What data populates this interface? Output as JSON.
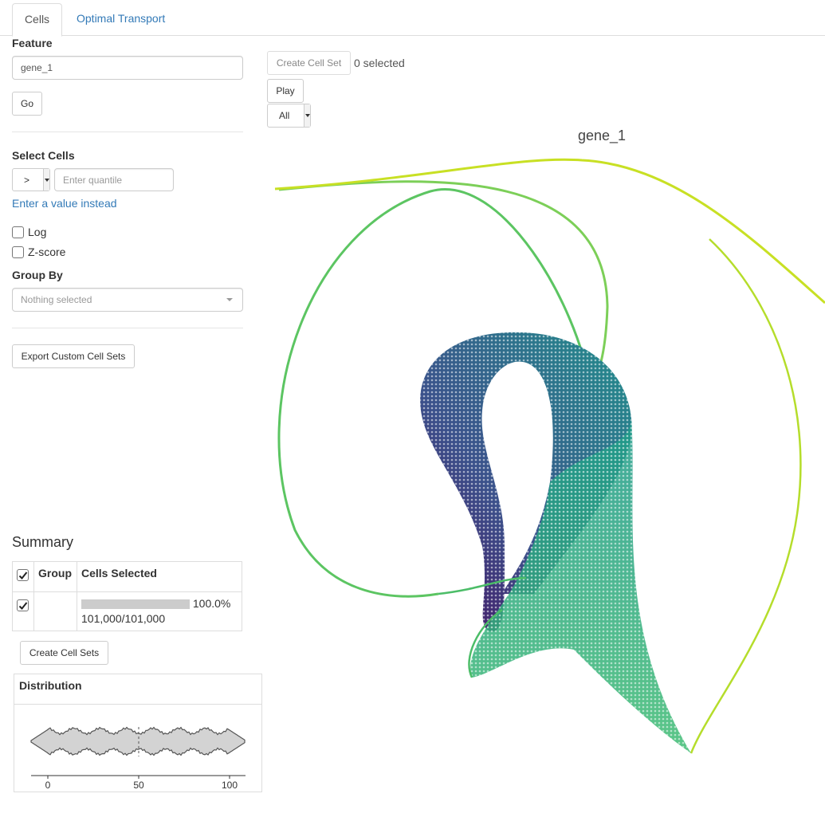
{
  "tabs": {
    "cells": "Cells",
    "optimal_transport": "Optimal Transport"
  },
  "feature": {
    "label": "Feature",
    "value": "gene_1",
    "go_label": "Go"
  },
  "select_cells": {
    "label": "Select Cells",
    "operator": ">",
    "quantile_placeholder": "Enter quantile",
    "value_link": "Enter a value instead"
  },
  "options": {
    "log_label": "Log",
    "zscore_label": "Z-score"
  },
  "group_by": {
    "label": "Group By",
    "placeholder": "Nothing selected"
  },
  "export_label": "Export Custom Cell Sets",
  "toolbar": {
    "create_cell_set": "Create Cell Set",
    "selected_count": "0 selected",
    "play": "Play",
    "time_select": "All"
  },
  "plot": {
    "title": "gene_1"
  },
  "summary": {
    "title": "Summary",
    "headers": [
      "Group",
      "Cells Selected"
    ],
    "row": {
      "percent": "100.0%",
      "count": "101,000/101,000",
      "fraction": 1.0
    },
    "create_label": "Create Cell Sets"
  },
  "distribution": {
    "title": "Distribution",
    "axis_ticks": [
      "0",
      "50",
      "100"
    ],
    "median": 50
  },
  "colors": {
    "link": "#337ab7",
    "viridis_dark": "#440154",
    "viridis_teal": "#21918c",
    "viridis_green": "#5ec962",
    "viridis_yellow": "#c7e020"
  }
}
